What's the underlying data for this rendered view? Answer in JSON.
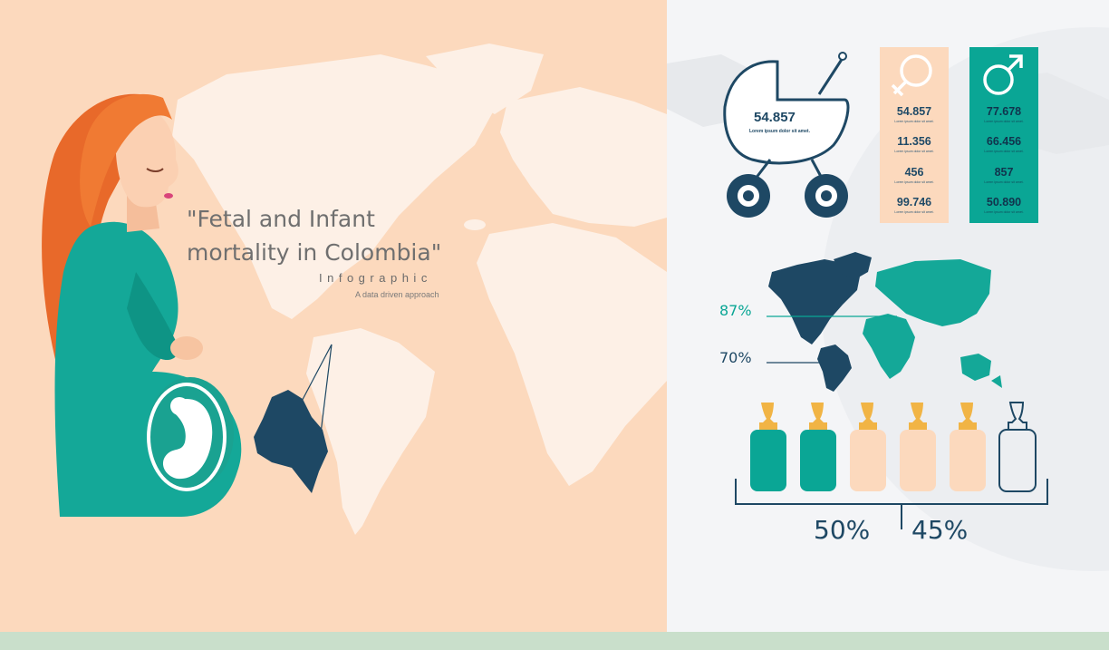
{
  "title": {
    "line1": "\"Fetal and Infant",
    "line2": "mortality in Colombia\"",
    "subtitle": "Infographic",
    "tagline": "A data driven approach"
  },
  "stroller": {
    "value": "54.857",
    "caption": "Lorem ipsum dolor sit amet."
  },
  "female_card": {
    "symbol": "female-symbol-icon",
    "items": [
      {
        "value": "54.857",
        "caption": "Lorem ipsum dolor sit amet."
      },
      {
        "value": "11.356",
        "caption": "Lorem ipsum dolor sit amet."
      },
      {
        "value": "456",
        "caption": "Lorem ipsum dolor sit amet."
      },
      {
        "value": "99.746",
        "caption": "Lorem ipsum dolor sit amet."
      }
    ]
  },
  "male_card": {
    "symbol": "male-symbol-icon",
    "items": [
      {
        "value": "77.678",
        "caption": "Lorem ipsum dolor sit amet."
      },
      {
        "value": "66.456",
        "caption": "Lorem ipsum dolor sit amet."
      },
      {
        "value": "857",
        "caption": "Lorem ipsum dolor sit amet."
      },
      {
        "value": "50.890",
        "caption": "Lorem ipsum dolor sit amet."
      }
    ]
  },
  "world_map": {
    "callouts": [
      {
        "label": "87%"
      },
      {
        "label": "70%"
      }
    ]
  },
  "bottles": {
    "items": [
      "filled",
      "filled",
      "empty",
      "empty",
      "empty",
      "outline"
    ],
    "left_percent": "50%",
    "right_percent": "45%"
  },
  "colors": {
    "peach_bg": "#fcd9bd",
    "map_light": "#fdf0e6",
    "teal": "#0aa695",
    "navy": "#1e4864",
    "hair": "#e8692a",
    "bottom_strip": "#c9dfcb"
  }
}
